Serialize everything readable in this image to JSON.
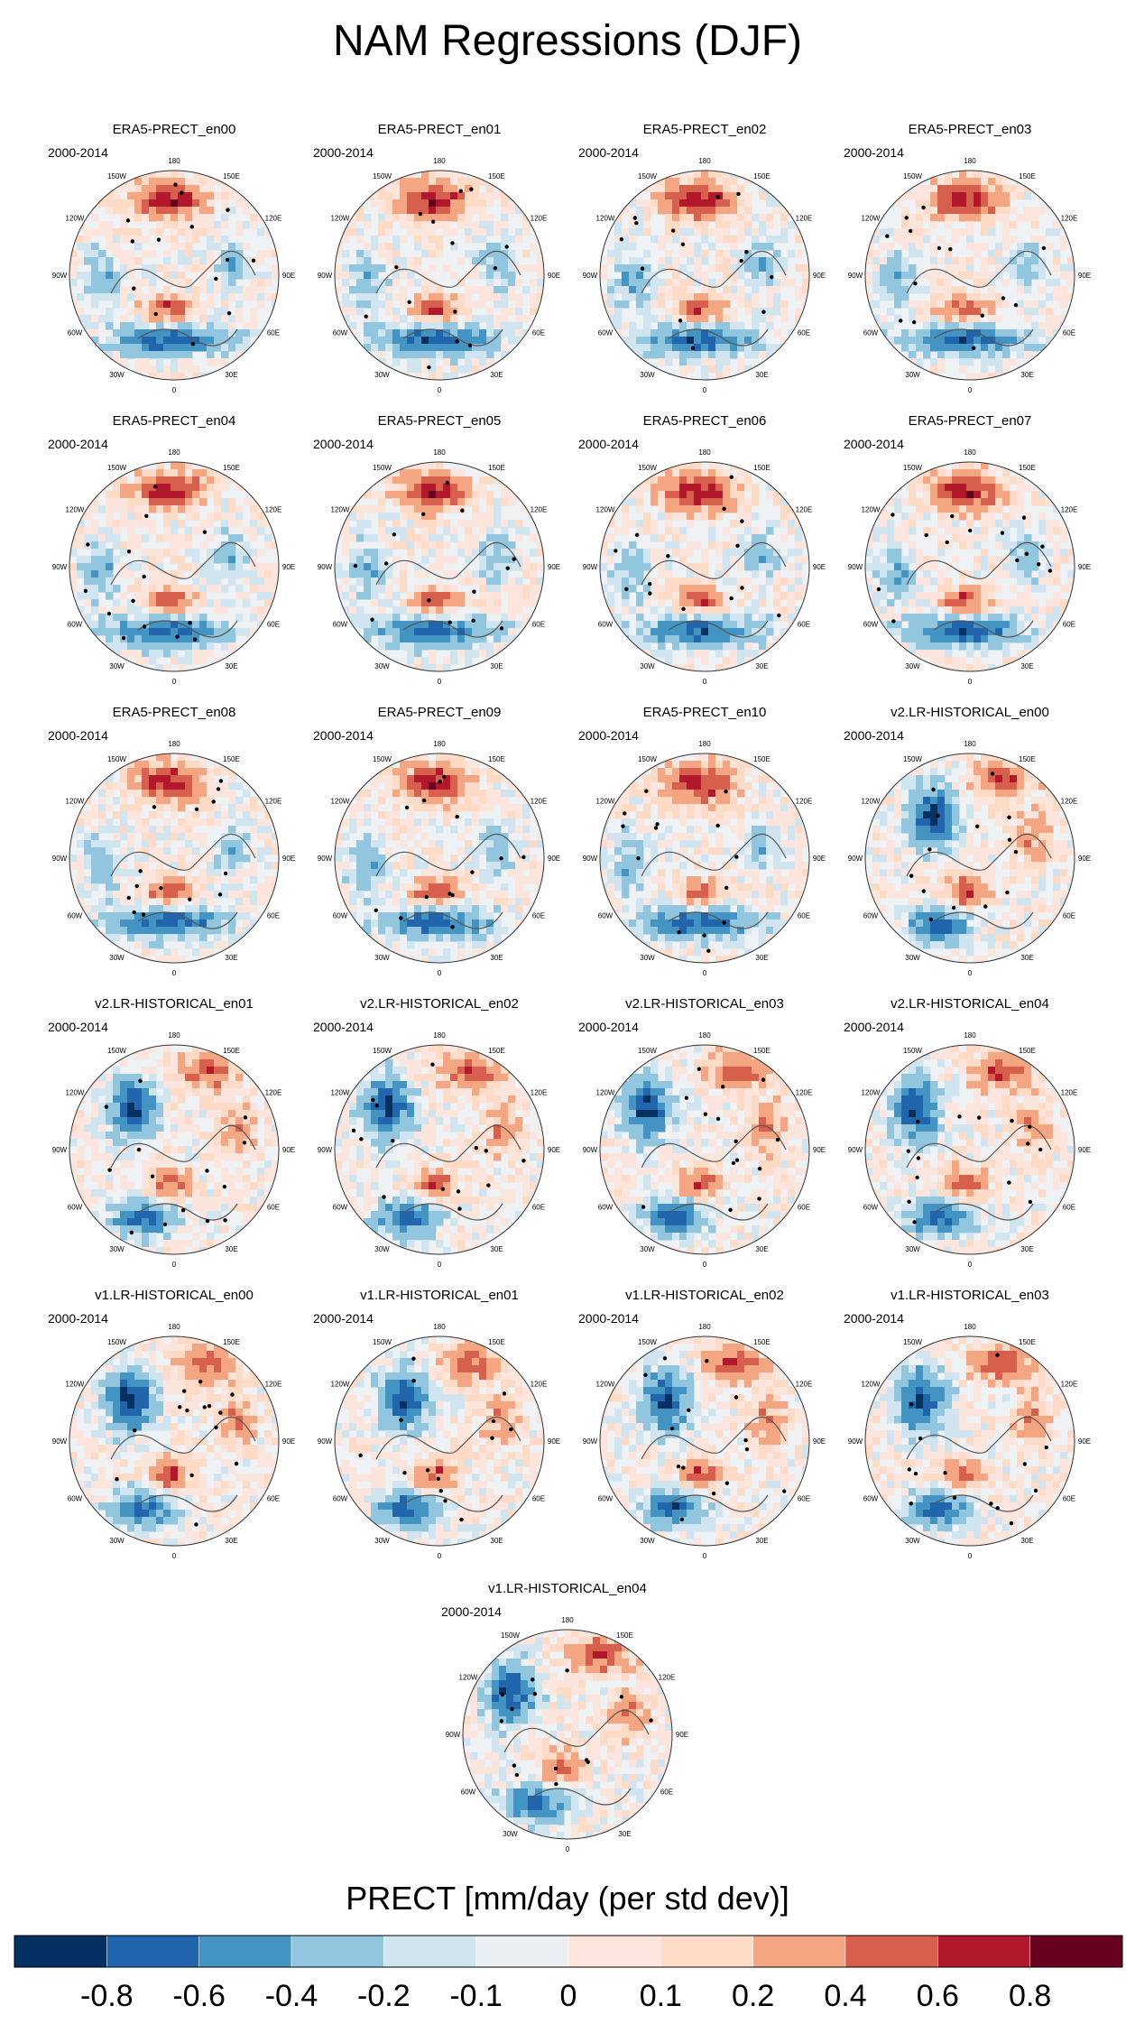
{
  "title": "NAM Regressions (DJF)",
  "period": "2000-2014",
  "lon_labels": [
    "180",
    "150E",
    "120E",
    "90E",
    "60E",
    "30E",
    "0",
    "30W",
    "60W",
    "90W",
    "120W",
    "150W"
  ],
  "chart_data": {
    "type": "heatmap",
    "projection": "north polar stereographic",
    "variable": "PRECT",
    "panels": [
      {
        "name": "ERA5-PRECT_en00",
        "pattern": "era5"
      },
      {
        "name": "ERA5-PRECT_en01",
        "pattern": "era5"
      },
      {
        "name": "ERA5-PRECT_en02",
        "pattern": "era5"
      },
      {
        "name": "ERA5-PRECT_en03",
        "pattern": "era5"
      },
      {
        "name": "ERA5-PRECT_en04",
        "pattern": "era5"
      },
      {
        "name": "ERA5-PRECT_en05",
        "pattern": "era5"
      },
      {
        "name": "ERA5-PRECT_en06",
        "pattern": "era5"
      },
      {
        "name": "ERA5-PRECT_en07",
        "pattern": "era5"
      },
      {
        "name": "ERA5-PRECT_en08",
        "pattern": "era5"
      },
      {
        "name": "ERA5-PRECT_en09",
        "pattern": "era5"
      },
      {
        "name": "ERA5-PRECT_en10",
        "pattern": "era5"
      },
      {
        "name": "v2.LR-HISTORICAL_en00",
        "pattern": "model"
      },
      {
        "name": "v2.LR-HISTORICAL_en01",
        "pattern": "model"
      },
      {
        "name": "v2.LR-HISTORICAL_en02",
        "pattern": "model"
      },
      {
        "name": "v2.LR-HISTORICAL_en03",
        "pattern": "model"
      },
      {
        "name": "v2.LR-HISTORICAL_en04",
        "pattern": "model"
      },
      {
        "name": "v1.LR-HISTORICAL_en00",
        "pattern": "model"
      },
      {
        "name": "v1.LR-HISTORICAL_en01",
        "pattern": "model"
      },
      {
        "name": "v1.LR-HISTORICAL_en02",
        "pattern": "model"
      },
      {
        "name": "v1.LR-HISTORICAL_en03",
        "pattern": "model"
      },
      {
        "name": "v1.LR-HISTORICAL_en04",
        "pattern": "model"
      }
    ],
    "colorbar": {
      "title": "PRECT [mm/day (per std dev)]",
      "tick_labels": [
        "-0.8",
        "-0.6",
        "-0.4",
        "-0.2",
        "-0.1",
        "0",
        "0.1",
        "0.2",
        "0.4",
        "0.6",
        "0.8"
      ],
      "colors": [
        "#053061",
        "#2166ac",
        "#4393c3",
        "#92c5de",
        "#d1e5f0",
        "#eaeff3",
        "#fbe5dc",
        "#fddbc7",
        "#f4a582",
        "#d6604d",
        "#b2182b",
        "#67001f"
      ]
    }
  }
}
